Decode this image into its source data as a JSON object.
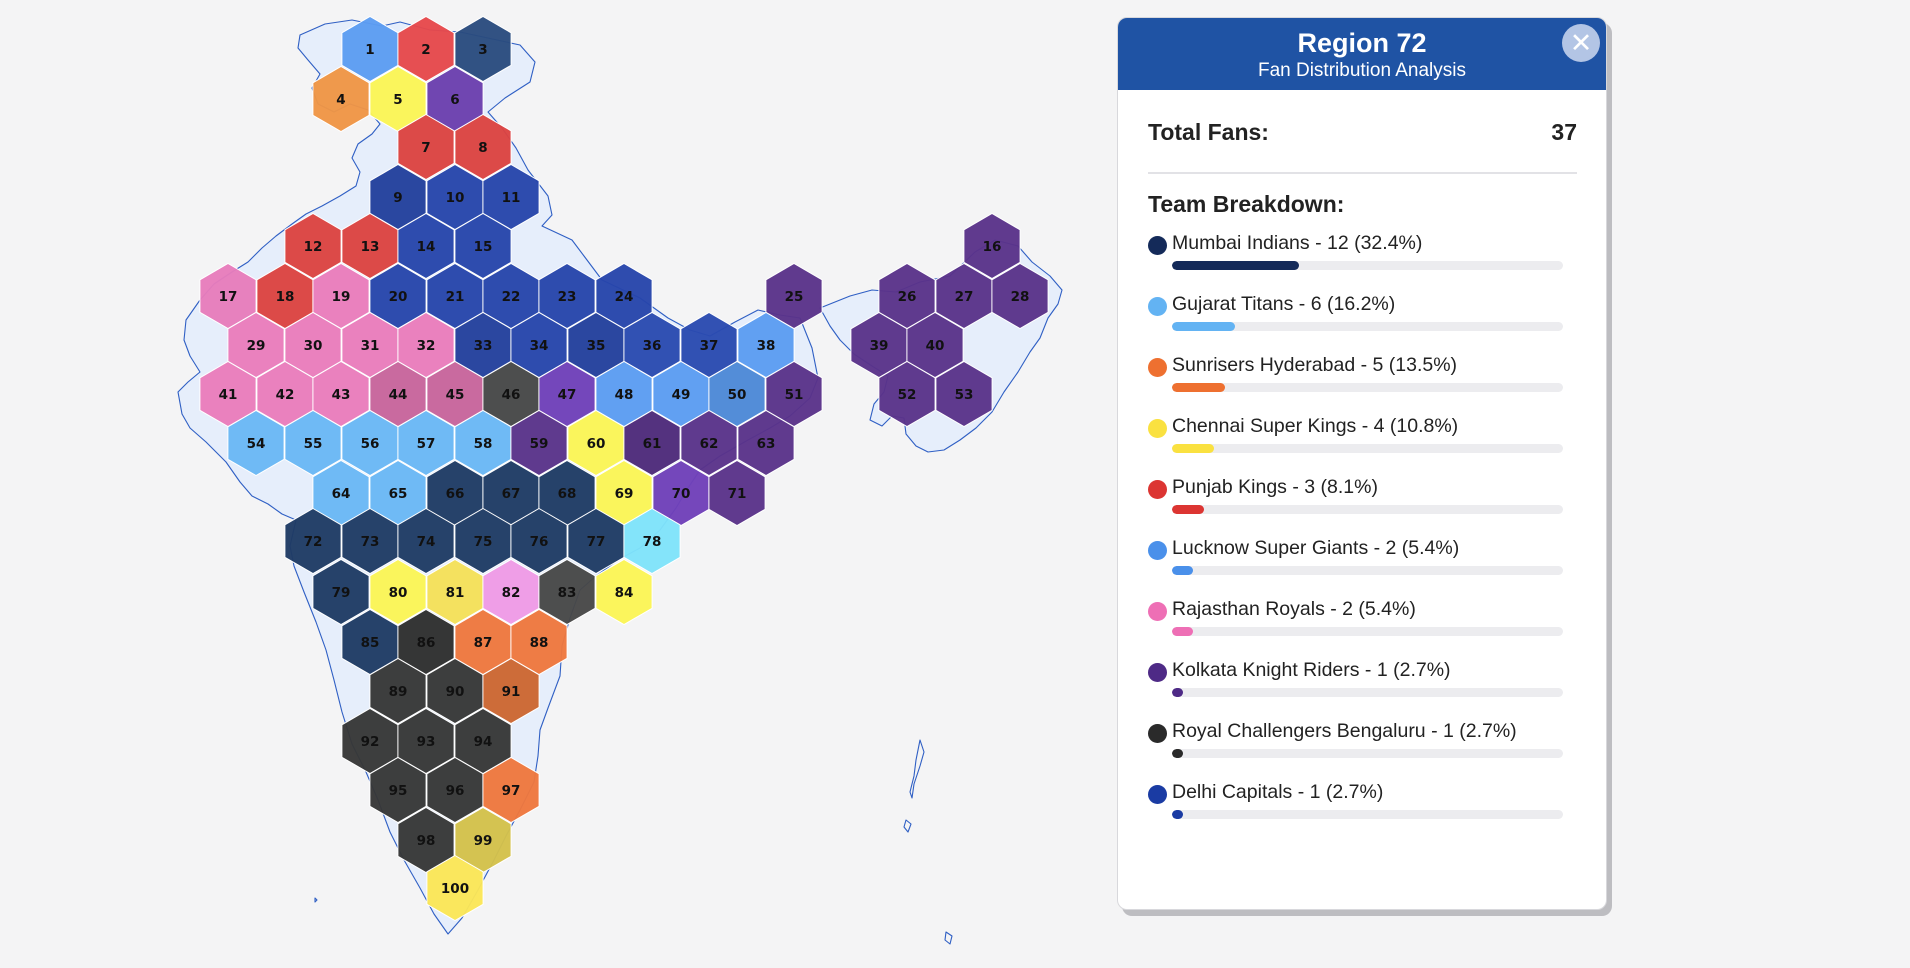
{
  "panel": {
    "title": "Region 72",
    "subtitle": "Fan Distribution Analysis",
    "close_icon": "close-icon",
    "total_label": "Total Fans:",
    "total_value": "37",
    "breakdown_title": "Team Breakdown:",
    "teams": [
      {
        "label": "Mumbai Indians - 12 (32.4%)",
        "name": "Mumbai Indians",
        "fans": 12,
        "percent": 32.4,
        "color": "#142a59"
      },
      {
        "label": "Gujarat Titans - 6 (16.2%)",
        "name": "Gujarat Titans",
        "fans": 6,
        "percent": 16.2,
        "color": "#63b3f3"
      },
      {
        "label": "Sunrisers Hyderabad - 5 (13.5%)",
        "name": "Sunrisers Hyderabad",
        "fans": 5,
        "percent": 13.5,
        "color": "#ee7030"
      },
      {
        "label": "Chennai Super Kings - 4 (10.8%)",
        "name": "Chennai Super Kings",
        "fans": 4,
        "percent": 10.8,
        "color": "#fae140"
      },
      {
        "label": "Punjab Kings - 3 (8.1%)",
        "name": "Punjab Kings",
        "fans": 3,
        "percent": 8.1,
        "color": "#dc3532"
      },
      {
        "label": "Lucknow Super Giants - 2 (5.4%)",
        "name": "Lucknow Super Giants",
        "fans": 2,
        "percent": 5.4,
        "color": "#4a90ea"
      },
      {
        "label": "Rajasthan Royals - 2 (5.4%)",
        "name": "Rajasthan Royals",
        "fans": 2,
        "percent": 5.4,
        "color": "#ee6fb5"
      },
      {
        "label": "Kolkata Knight Riders - 1 (2.7%)",
        "name": "Kolkata Knight Riders",
        "fans": 1,
        "percent": 2.7,
        "color": "#4e2a86"
      },
      {
        "label": "Royal Challengers Bengaluru - 1 (2.7%)",
        "name": "Royal Challengers Bengaluru",
        "fans": 1,
        "percent": 2.7,
        "color": "#2a2a2a"
      },
      {
        "label": "Delhi Capitals - 1 (2.7%)",
        "name": "Delhi Capitals",
        "fans": 1,
        "percent": 2.7,
        "color": "#1a3ba3"
      }
    ]
  },
  "map": {
    "regions": [
      {
        "id": "1",
        "team": "Lucknow Super Giants",
        "color": "#5c9cf1"
      },
      {
        "id": "2",
        "team": "Punjab Kings",
        "color": "#e6484b"
      },
      {
        "id": "3",
        "team": "Mumbai Indians",
        "color": "#2a4b7e"
      },
      {
        "id": "4",
        "team": "Sunrisers Hyderabad",
        "color": "#ef9545"
      },
      {
        "id": "5",
        "team": "Chennai Super Kings",
        "color": "#fbf555"
      },
      {
        "id": "6",
        "team": "Kolkata Knight Riders",
        "color": "#6b3eae"
      },
      {
        "id": "7",
        "team": "Punjab Kings",
        "color": "#dc4341"
      },
      {
        "id": "8",
        "team": "Punjab Kings",
        "color": "#dc4341"
      },
      {
        "id": "9",
        "team": "Delhi Capitals",
        "color": "#223f9c"
      },
      {
        "id": "10",
        "team": "Delhi Capitals",
        "color": "#2745ab"
      },
      {
        "id": "11",
        "team": "Delhi Capitals",
        "color": "#2745ab"
      },
      {
        "id": "12",
        "team": "Punjab Kings",
        "color": "#dc4341"
      },
      {
        "id": "13",
        "team": "Punjab Kings",
        "color": "#dc4341"
      },
      {
        "id": "14",
        "team": "Delhi Capitals",
        "color": "#2745ab"
      },
      {
        "id": "15",
        "team": "Delhi Capitals",
        "color": "#2745ab"
      },
      {
        "id": "16",
        "team": "Kolkata Knight Riders",
        "color": "#5a3289"
      },
      {
        "id": "17",
        "team": "Rajasthan Royals",
        "color": "#e77cbb"
      },
      {
        "id": "18",
        "team": "Punjab Kings",
        "color": "#dc4341"
      },
      {
        "id": "19",
        "team": "Rajasthan Royals",
        "color": "#ea7cbb"
      },
      {
        "id": "20",
        "team": "Delhi Capitals",
        "color": "#2745ab"
      },
      {
        "id": "21",
        "team": "Delhi Capitals",
        "color": "#2745ab"
      },
      {
        "id": "22",
        "team": "Delhi Capitals",
        "color": "#2745ab"
      },
      {
        "id": "23",
        "team": "Delhi Capitals",
        "color": "#2745ab"
      },
      {
        "id": "24",
        "team": "Delhi Capitals",
        "color": "#2745ab"
      },
      {
        "id": "25",
        "team": "Kolkata Knight Riders",
        "color": "#5a3289"
      },
      {
        "id": "26",
        "team": "Kolkata Knight Riders",
        "color": "#5a3289"
      },
      {
        "id": "27",
        "team": "Kolkata Knight Riders",
        "color": "#5a3289"
      },
      {
        "id": "28",
        "team": "Kolkata Knight Riders",
        "color": "#5a3289"
      },
      {
        "id": "29",
        "team": "Rajasthan Royals",
        "color": "#ea7cbb"
      },
      {
        "id": "30",
        "team": "Rajasthan Royals",
        "color": "#ea7cbb"
      },
      {
        "id": "31",
        "team": "Rajasthan Royals",
        "color": "#ea7cbb"
      },
      {
        "id": "32",
        "team": "Rajasthan Royals",
        "color": "#ea7cbb"
      },
      {
        "id": "33",
        "team": "Delhi Capitals",
        "color": "#23409c"
      },
      {
        "id": "34",
        "team": "Delhi Capitals",
        "color": "#2745ab"
      },
      {
        "id": "35",
        "team": "Delhi Capitals",
        "color": "#23409c"
      },
      {
        "id": "36",
        "team": "Delhi Capitals",
        "color": "#2a4ab0"
      },
      {
        "id": "37",
        "team": "Delhi Capitals",
        "color": "#2a4ab0"
      },
      {
        "id": "38",
        "team": "Lucknow Super Giants",
        "color": "#5c9cf1"
      },
      {
        "id": "39",
        "team": "Kolkata Knight Riders",
        "color": "#5a3289"
      },
      {
        "id": "40",
        "team": "Kolkata Knight Riders",
        "color": "#5a3289"
      },
      {
        "id": "41",
        "team": "Rajasthan Royals",
        "color": "#ea7cbb"
      },
      {
        "id": "42",
        "team": "Rajasthan Royals",
        "color": "#ea7cbb"
      },
      {
        "id": "43",
        "team": "Rajasthan Royals",
        "color": "#ea7cbb"
      },
      {
        "id": "44",
        "team": "Rajasthan Royals",
        "color": "#c8649b"
      },
      {
        "id": "45",
        "team": "Rajasthan Royals",
        "color": "#c8649b"
      },
      {
        "id": "46",
        "team": "Royal Challengers Bengaluru",
        "color": "#474747"
      },
      {
        "id": "47",
        "team": "Kolkata Knight Riders",
        "color": "#6f3fb8"
      },
      {
        "id": "48",
        "team": "Lucknow Super Giants",
        "color": "#5c9cf1"
      },
      {
        "id": "49",
        "team": "Lucknow Super Giants",
        "color": "#5c9cf1"
      },
      {
        "id": "50",
        "team": "Lucknow Super Giants",
        "color": "#4d88d6"
      },
      {
        "id": "51",
        "team": "Kolkata Knight Riders",
        "color": "#5a3289"
      },
      {
        "id": "52",
        "team": "Kolkata Knight Riders",
        "color": "#5a3289"
      },
      {
        "id": "53",
        "team": "Kolkata Knight Riders",
        "color": "#5a3289"
      },
      {
        "id": "54",
        "team": "Gujarat Titans",
        "color": "#6ab7f5"
      },
      {
        "id": "55",
        "team": "Gujarat Titans",
        "color": "#6ab7f5"
      },
      {
        "id": "56",
        "team": "Gujarat Titans",
        "color": "#6ab7f5"
      },
      {
        "id": "57",
        "team": "Gujarat Titans",
        "color": "#6ab7f5"
      },
      {
        "id": "58",
        "team": "Gujarat Titans",
        "color": "#6ab7f5"
      },
      {
        "id": "59",
        "team": "Kolkata Knight Riders",
        "color": "#5a3289"
      },
      {
        "id": "60",
        "team": "Chennai Super Kings",
        "color": "#fbf555"
      },
      {
        "id": "61",
        "team": "Kolkata Knight Riders",
        "color": "#4e2a7a"
      },
      {
        "id": "62",
        "team": "Kolkata Knight Riders",
        "color": "#5a3289"
      },
      {
        "id": "63",
        "team": "Kolkata Knight Riders",
        "color": "#5a3289"
      },
      {
        "id": "64",
        "team": "Gujarat Titans",
        "color": "#6ab7f5"
      },
      {
        "id": "65",
        "team": "Gujarat Titans",
        "color": "#6ab7f5"
      },
      {
        "id": "66",
        "team": "Mumbai Indians",
        "color": "#1e3a64"
      },
      {
        "id": "67",
        "team": "Mumbai Indians",
        "color": "#1e3a64"
      },
      {
        "id": "68",
        "team": "Mumbai Indians",
        "color": "#1e3a64"
      },
      {
        "id": "69",
        "team": "Chennai Super Kings",
        "color": "#fbf555"
      },
      {
        "id": "70",
        "team": "Kolkata Knight Riders",
        "color": "#6f3fb8"
      },
      {
        "id": "71",
        "team": "Kolkata Knight Riders",
        "color": "#5a3289"
      },
      {
        "id": "72",
        "team": "Mumbai Indians",
        "color": "#1e3a64"
      },
      {
        "id": "73",
        "team": "Mumbai Indians",
        "color": "#1e3a64"
      },
      {
        "id": "74",
        "team": "Mumbai Indians",
        "color": "#1e3a64"
      },
      {
        "id": "75",
        "team": "Mumbai Indians",
        "color": "#1e3a64"
      },
      {
        "id": "76",
        "team": "Mumbai Indians",
        "color": "#1e3a64"
      },
      {
        "id": "77",
        "team": "Mumbai Indians",
        "color": "#1e3a64"
      },
      {
        "id": "78",
        "team": "Gujarat Titans",
        "color": "#7fe3fa"
      },
      {
        "id": "79",
        "team": "Mumbai Indians",
        "color": "#1e3a64"
      },
      {
        "id": "80",
        "team": "Chennai Super Kings",
        "color": "#fbf555"
      },
      {
        "id": "81",
        "team": "Chennai Super Kings",
        "color": "#f5e058"
      },
      {
        "id": "82",
        "team": "Rajasthan Royals",
        "color": "#ef9ae6"
      },
      {
        "id": "83",
        "team": "Royal Challengers Bengaluru",
        "color": "#474747"
      },
      {
        "id": "84",
        "team": "Chennai Super Kings",
        "color": "#fbf555"
      },
      {
        "id": "85",
        "team": "Mumbai Indians",
        "color": "#1e3a64"
      },
      {
        "id": "86",
        "team": "Royal Challengers Bengaluru",
        "color": "#2e2e2e"
      },
      {
        "id": "87",
        "team": "Sunrisers Hyderabad",
        "color": "#ee773d"
      },
      {
        "id": "88",
        "team": "Sunrisers Hyderabad",
        "color": "#ee773d"
      },
      {
        "id": "89",
        "team": "Royal Challengers Bengaluru",
        "color": "#363636"
      },
      {
        "id": "90",
        "team": "Royal Challengers Bengaluru",
        "color": "#363636"
      },
      {
        "id": "91",
        "team": "Sunrisers Hyderabad",
        "color": "#cc6631"
      },
      {
        "id": "92",
        "team": "Royal Challengers Bengaluru",
        "color": "#363636"
      },
      {
        "id": "93",
        "team": "Royal Challengers Bengaluru",
        "color": "#363636"
      },
      {
        "id": "94",
        "team": "Royal Challengers Bengaluru",
        "color": "#363636"
      },
      {
        "id": "95",
        "team": "Royal Challengers Bengaluru",
        "color": "#363636"
      },
      {
        "id": "96",
        "team": "Royal Challengers Bengaluru",
        "color": "#363636"
      },
      {
        "id": "97",
        "team": "Sunrisers Hyderabad",
        "color": "#ee773d"
      },
      {
        "id": "98",
        "team": "Royal Challengers Bengaluru",
        "color": "#363636"
      },
      {
        "id": "99",
        "team": "Chennai Super Kings",
        "color": "#d3c14a"
      },
      {
        "id": "100",
        "team": "Chennai Super Kings",
        "color": "#fbe656"
      }
    ]
  }
}
